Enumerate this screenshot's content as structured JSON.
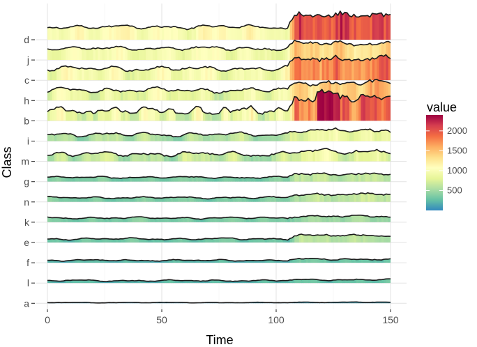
{
  "chart_data": {
    "type": "ridgeline-heatmap",
    "xlabel": "Time",
    "ylabel": "Class",
    "xlim": [
      0,
      150
    ],
    "x_ticks": [
      "0",
      "50",
      "100",
      "150"
    ],
    "x_tick_values": [
      0,
      50,
      100,
      150
    ],
    "grid": true,
    "legend": {
      "title": "value",
      "placement": "right",
      "ticks": [
        "500",
        "1000",
        "1500",
        "2000"
      ],
      "tick_values": [
        500,
        1000,
        1500,
        2000
      ],
      "range": [
        0,
        2400
      ],
      "colorscale": [
        "#3288bd",
        "#66c2a5",
        "#abdda4",
        "#e6f598",
        "#ffffbf",
        "#fee08b",
        "#fdae61",
        "#f46d43",
        "#d53e4f",
        "#9e0142"
      ]
    },
    "classes": [
      "d",
      "j",
      "c",
      "h",
      "b",
      "i",
      "m",
      "g",
      "n",
      "k",
      "e",
      "f",
      "l",
      "a"
    ],
    "series": [
      {
        "name": "d",
        "base": 1050,
        "amp": 200,
        "jump": 1050,
        "spikes": 0
      },
      {
        "name": "j",
        "base": 950,
        "amp": 200,
        "jump": 450,
        "spikes": 0
      },
      {
        "name": "c",
        "base": 950,
        "amp": 250,
        "jump": 900,
        "spikes": 0
      },
      {
        "name": "h",
        "base": 850,
        "amp": 250,
        "jump": 650,
        "spikes": 0
      },
      {
        "name": "b",
        "base": 750,
        "amp": 300,
        "jump": 1100,
        "spikes": 1
      },
      {
        "name": "i",
        "base": 550,
        "amp": 200,
        "jump": 350,
        "spikes": 0
      },
      {
        "name": "m",
        "base": 600,
        "amp": 250,
        "jump": 250,
        "spikes": 0
      },
      {
        "name": "g",
        "base": 350,
        "amp": 100,
        "jump": 300,
        "spikes": 0
      },
      {
        "name": "n",
        "base": 350,
        "amp": 100,
        "jump": 300,
        "spikes": 0
      },
      {
        "name": "k",
        "base": 350,
        "amp": 100,
        "jump": 150,
        "spikes": 0
      },
      {
        "name": "e",
        "base": 300,
        "amp": 100,
        "jump": 300,
        "spikes": 0
      },
      {
        "name": "f",
        "base": 200,
        "amp": 80,
        "jump": 100,
        "spikes": 0
      },
      {
        "name": "l",
        "base": 200,
        "amp": 80,
        "jump": 80,
        "spikes": 0
      },
      {
        "name": "a",
        "base": 60,
        "amp": 30,
        "jump": 30,
        "spikes": 0
      }
    ]
  }
}
